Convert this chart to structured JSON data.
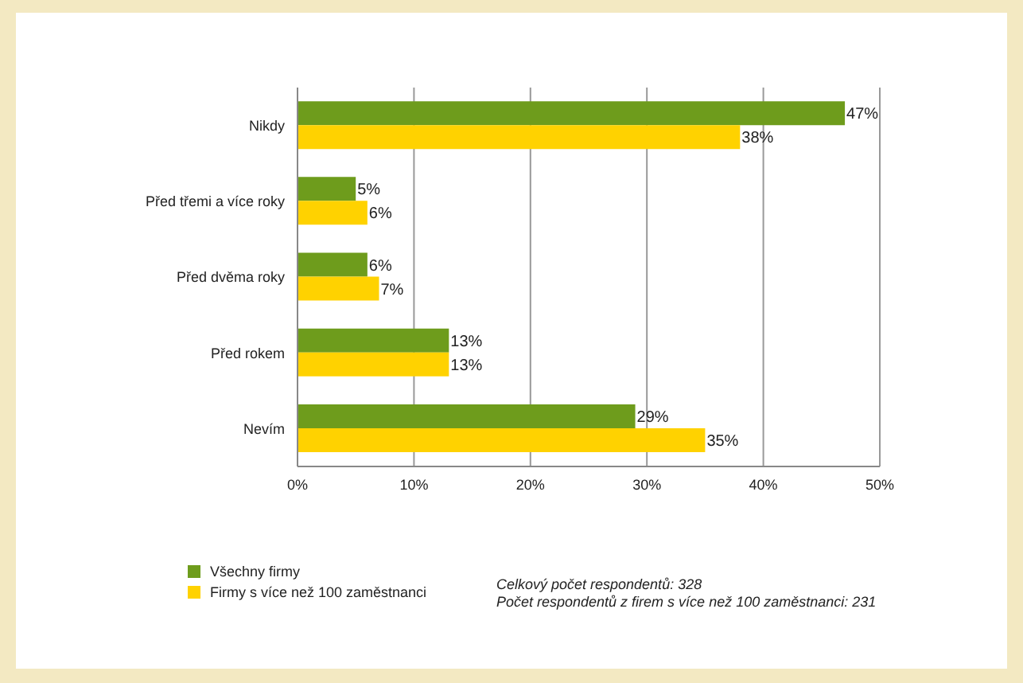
{
  "chart_data": {
    "type": "bar",
    "orientation": "horizontal",
    "categories": [
      "Nikdy",
      "Před třemi a více roky",
      "Před dvěma roky",
      "Před rokem",
      "Nevím"
    ],
    "series": [
      {
        "name": "Všechny firmy",
        "color": "#6e9c1c",
        "values": [
          47,
          5,
          6,
          13,
          29
        ],
        "value_labels": [
          "47%",
          "5%",
          "6%",
          "13%",
          "29%"
        ]
      },
      {
        "name": "Firmy s více než 100 zaměstnanci",
        "color": "#ffd200",
        "values": [
          38,
          6,
          7,
          13,
          35
        ],
        "value_labels": [
          "38%",
          "6%",
          "7%",
          "13%",
          "35%"
        ]
      }
    ],
    "xlim": [
      0,
      50
    ],
    "xticks": [
      {
        "value": 0,
        "label": "0%"
      },
      {
        "value": 10,
        "label": "10%"
      },
      {
        "value": 20,
        "label": "20%"
      },
      {
        "value": 30,
        "label": "30%"
      },
      {
        "value": 40,
        "label": "40%"
      },
      {
        "value": 50,
        "label": "50%"
      }
    ],
    "grid": "x",
    "legend": "bottom left",
    "annotations": [
      "Celkový počet respondentů: 328",
      "Počet respondentů z firem s více než 100 zaměstnanci: 231"
    ]
  }
}
